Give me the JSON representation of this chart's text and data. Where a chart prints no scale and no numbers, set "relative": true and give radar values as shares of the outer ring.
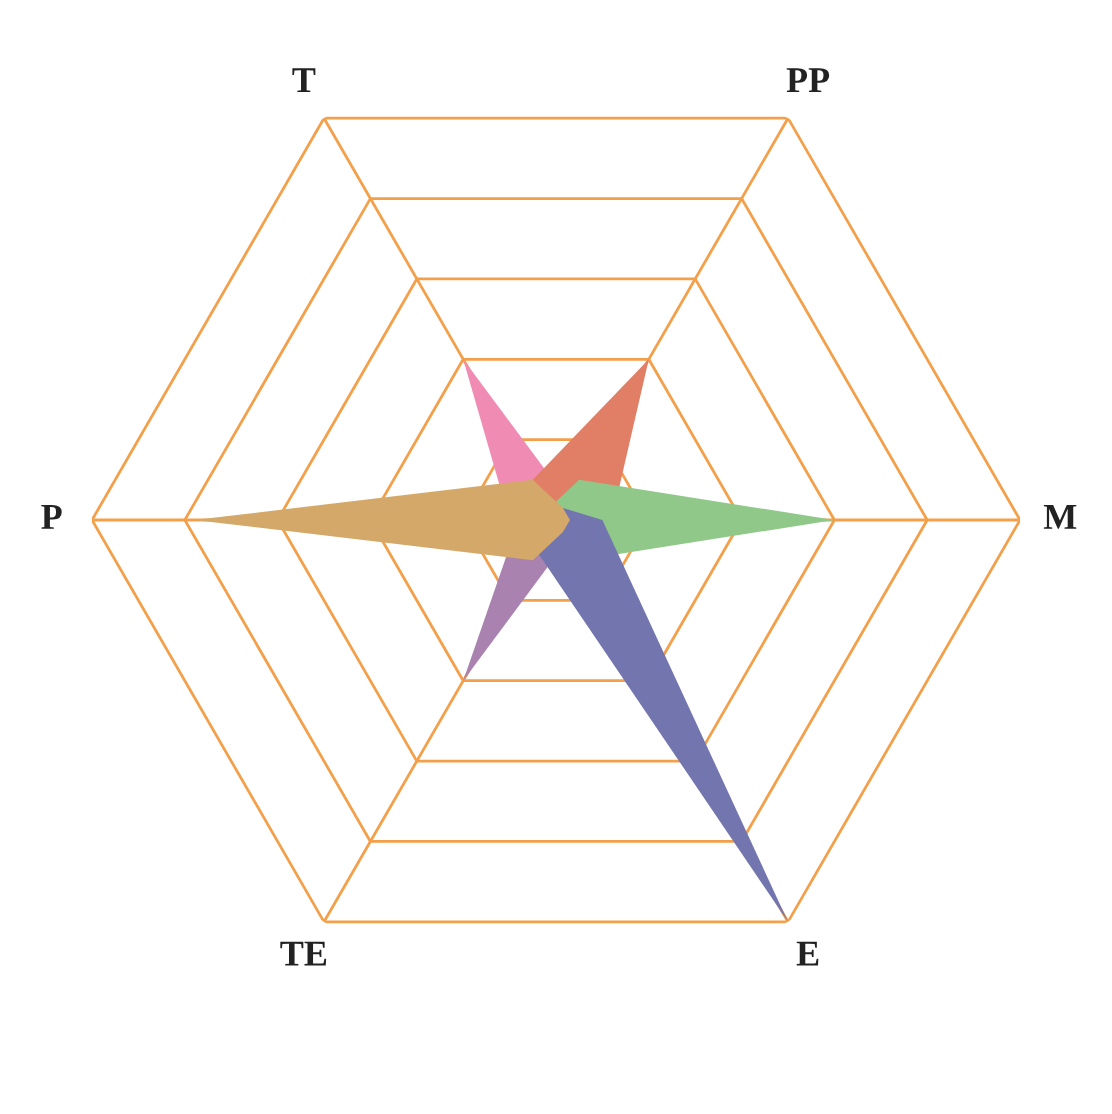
{
  "chart_data": {
    "type": "radar",
    "categories": [
      "T",
      "PP",
      "M",
      "E",
      "TE",
      "P"
    ],
    "relative": true,
    "grid": true,
    "series": [
      {
        "color": "#a982b0",
        "values": [
          0.04,
          0.03,
          0.03,
          0.05,
          0.4,
          0.08
        ]
      },
      {
        "color": "#f08cb4",
        "values": [
          0.4,
          0.05,
          0.03,
          0.03,
          0.03,
          0.1
        ]
      },
      {
        "color": "#e07e66",
        "values": [
          0.1,
          0.4,
          0.12,
          0.03,
          0.03,
          0.03
        ]
      },
      {
        "color": "#90c88a",
        "values": [
          0.03,
          0.1,
          0.6,
          0.1,
          0.03,
          0.03
        ]
      },
      {
        "color": "#7376ae",
        "values": [
          0.03,
          0.03,
          0.1,
          1.0,
          0.08,
          0.03
        ]
      },
      {
        "color": "#d4a868",
        "values": [
          0.1,
          0.03,
          0.03,
          0.03,
          0.1,
          0.78
        ]
      }
    ]
  }
}
